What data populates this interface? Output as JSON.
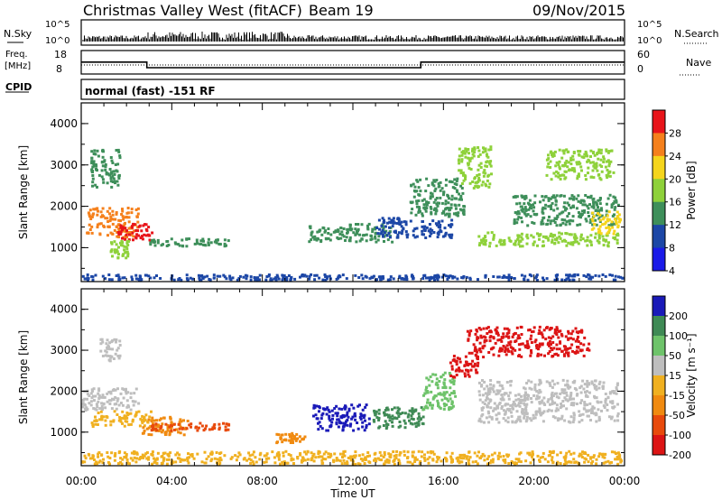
{
  "header": {
    "title": "Christmas Valley West (fitACF)",
    "beam": "Beam 19",
    "date": "09/Nov/2015"
  },
  "status_panels": {
    "nsky_label": "N.Sky",
    "nsearch_label": "N.Search",
    "nsky_ticks": [
      "10^5",
      "10^0"
    ],
    "nsearch_ticks": [
      "10^5",
      "10^0"
    ],
    "freq_label_1": "Freq.",
    "freq_label_2": "[MHz]",
    "freq_ticks": [
      "18",
      "8"
    ],
    "nave_label": "Nave",
    "nave_ticks": [
      "60",
      "0"
    ],
    "cpid_label": "CPID",
    "cpid_text": "normal (fast) -151 RF",
    "freq_steps": [
      [
        0,
        14
      ],
      [
        2.9,
        14
      ],
      [
        2.9,
        11.2
      ],
      [
        15,
        11.2
      ],
      [
        15,
        14
      ],
      [
        24,
        14
      ]
    ]
  },
  "chart_data": [
    {
      "type": "heatmap",
      "name": "power",
      "ylabel": "Slant Range [km]",
      "xlabel": "",
      "x_ticks": [
        "00:00",
        "04:00",
        "08:00",
        "12:00",
        "16:00",
        "20:00",
        "00:00"
      ],
      "xlim": [
        0,
        24
      ],
      "ylim": [
        180,
        4500
      ],
      "y_ticks": [
        "1000",
        "2000",
        "3000",
        "4000"
      ],
      "colorbar": {
        "label": "Power [dB]",
        "ticks": [
          "28",
          "24",
          "20",
          "16",
          "12",
          "8",
          "4"
        ],
        "colors": [
          "#e8141a",
          "#f5801c",
          "#f5d51c",
          "#8ed13a",
          "#3e8f5a",
          "#1c47a6",
          "#1a1ae8"
        ]
      },
      "regions": [
        {
          "x": [
            0.2,
            2.6
          ],
          "y": [
            1200,
            2000
          ],
          "color": "#f5801c"
        },
        {
          "x": [
            1.5,
            3.2
          ],
          "y": [
            1150,
            1600
          ],
          "color": "#e8141a"
        },
        {
          "x": [
            0.4,
            1.8
          ],
          "y": [
            2400,
            3400
          ],
          "color": "#3e8f5a"
        },
        {
          "x": [
            1.2,
            2.2
          ],
          "y": [
            700,
            1200
          ],
          "color": "#8ed13a"
        },
        {
          "x": [
            3.0,
            6.6
          ],
          "y": [
            1000,
            1250
          ],
          "color": "#3e8f5a"
        },
        {
          "x": [
            10.0,
            13.8
          ],
          "y": [
            1100,
            1600
          ],
          "color": "#3e8f5a"
        },
        {
          "x": [
            13.0,
            16.5
          ],
          "y": [
            1200,
            1750
          ],
          "color": "#1c47a6"
        },
        {
          "x": [
            14.5,
            17.0
          ],
          "y": [
            1700,
            2700
          ],
          "color": "#3e8f5a"
        },
        {
          "x": [
            16.6,
            18.2
          ],
          "y": [
            2400,
            3500
          ],
          "color": "#8ed13a"
        },
        {
          "x": [
            17.5,
            23.8
          ],
          "y": [
            1000,
            1400
          ],
          "color": "#8ed13a"
        },
        {
          "x": [
            19.0,
            23.8
          ],
          "y": [
            1500,
            2300
          ],
          "color": "#3e8f5a"
        },
        {
          "x": [
            20.5,
            23.6
          ],
          "y": [
            2600,
            3400
          ],
          "color": "#8ed13a"
        },
        {
          "x": [
            22.5,
            23.9
          ],
          "y": [
            1300,
            1900
          ],
          "color": "#f5d51c"
        },
        {
          "x": [
            0.0,
            24.0
          ],
          "y": [
            180,
            380
          ],
          "color": "#1c47a6"
        }
      ]
    },
    {
      "type": "heatmap",
      "name": "velocity",
      "ylabel": "Slant Range [km]",
      "xlabel": "Time UT",
      "x_ticks": [
        "00:00",
        "04:00",
        "08:00",
        "12:00",
        "16:00",
        "20:00",
        "00:00"
      ],
      "xlim": [
        0,
        24
      ],
      "ylim": [
        180,
        4500
      ],
      "y_ticks": [
        "1000",
        "2000",
        "3000",
        "4000"
      ],
      "colorbar": {
        "label": "Velocity [m s⁻¹]",
        "ticks": [
          "200",
          "100",
          "50",
          "15",
          "-15",
          "-50",
          "-100",
          "-200"
        ],
        "colors": [
          "#1a1ab8",
          "#3f8a55",
          "#6ec36a",
          "#bebebe",
          "#f0b020",
          "#f08a10",
          "#e84a0c",
          "#dc1414"
        ]
      },
      "regions": [
        {
          "x": [
            0.0,
            2.6
          ],
          "y": [
            1500,
            2100
          ],
          "color": "#bebebe"
        },
        {
          "x": [
            0.4,
            3.2
          ],
          "y": [
            1100,
            1550
          ],
          "color": "#f0b020"
        },
        {
          "x": [
            2.6,
            4.8
          ],
          "y": [
            900,
            1400
          ],
          "color": "#f08a10"
        },
        {
          "x": [
            3.0,
            6.6
          ],
          "y": [
            1000,
            1250
          ],
          "color": "#e84a0c"
        },
        {
          "x": [
            0.8,
            1.8
          ],
          "y": [
            2700,
            3300
          ],
          "color": "#bebebe"
        },
        {
          "x": [
            8.5,
            10.0
          ],
          "y": [
            700,
            1000
          ],
          "color": "#f08a10"
        },
        {
          "x": [
            10.2,
            12.8
          ],
          "y": [
            1000,
            1700
          ],
          "color": "#1a1ab8"
        },
        {
          "x": [
            12.8,
            15.2
          ],
          "y": [
            1050,
            1650
          ],
          "color": "#3f8a55"
        },
        {
          "x": [
            15.0,
            16.6
          ],
          "y": [
            1500,
            2500
          ],
          "color": "#6ec36a"
        },
        {
          "x": [
            16.2,
            17.6
          ],
          "y": [
            2300,
            2900
          ],
          "color": "#dc1414"
        },
        {
          "x": [
            17.0,
            22.5
          ],
          "y": [
            2800,
            3600
          ],
          "color": "#dc1414"
        },
        {
          "x": [
            17.5,
            23.8
          ],
          "y": [
            1200,
            2300
          ],
          "color": "#bebebe"
        },
        {
          "x": [
            0.0,
            24.0
          ],
          "y": [
            180,
            560
          ],
          "color": "#f0b020"
        }
      ]
    }
  ]
}
